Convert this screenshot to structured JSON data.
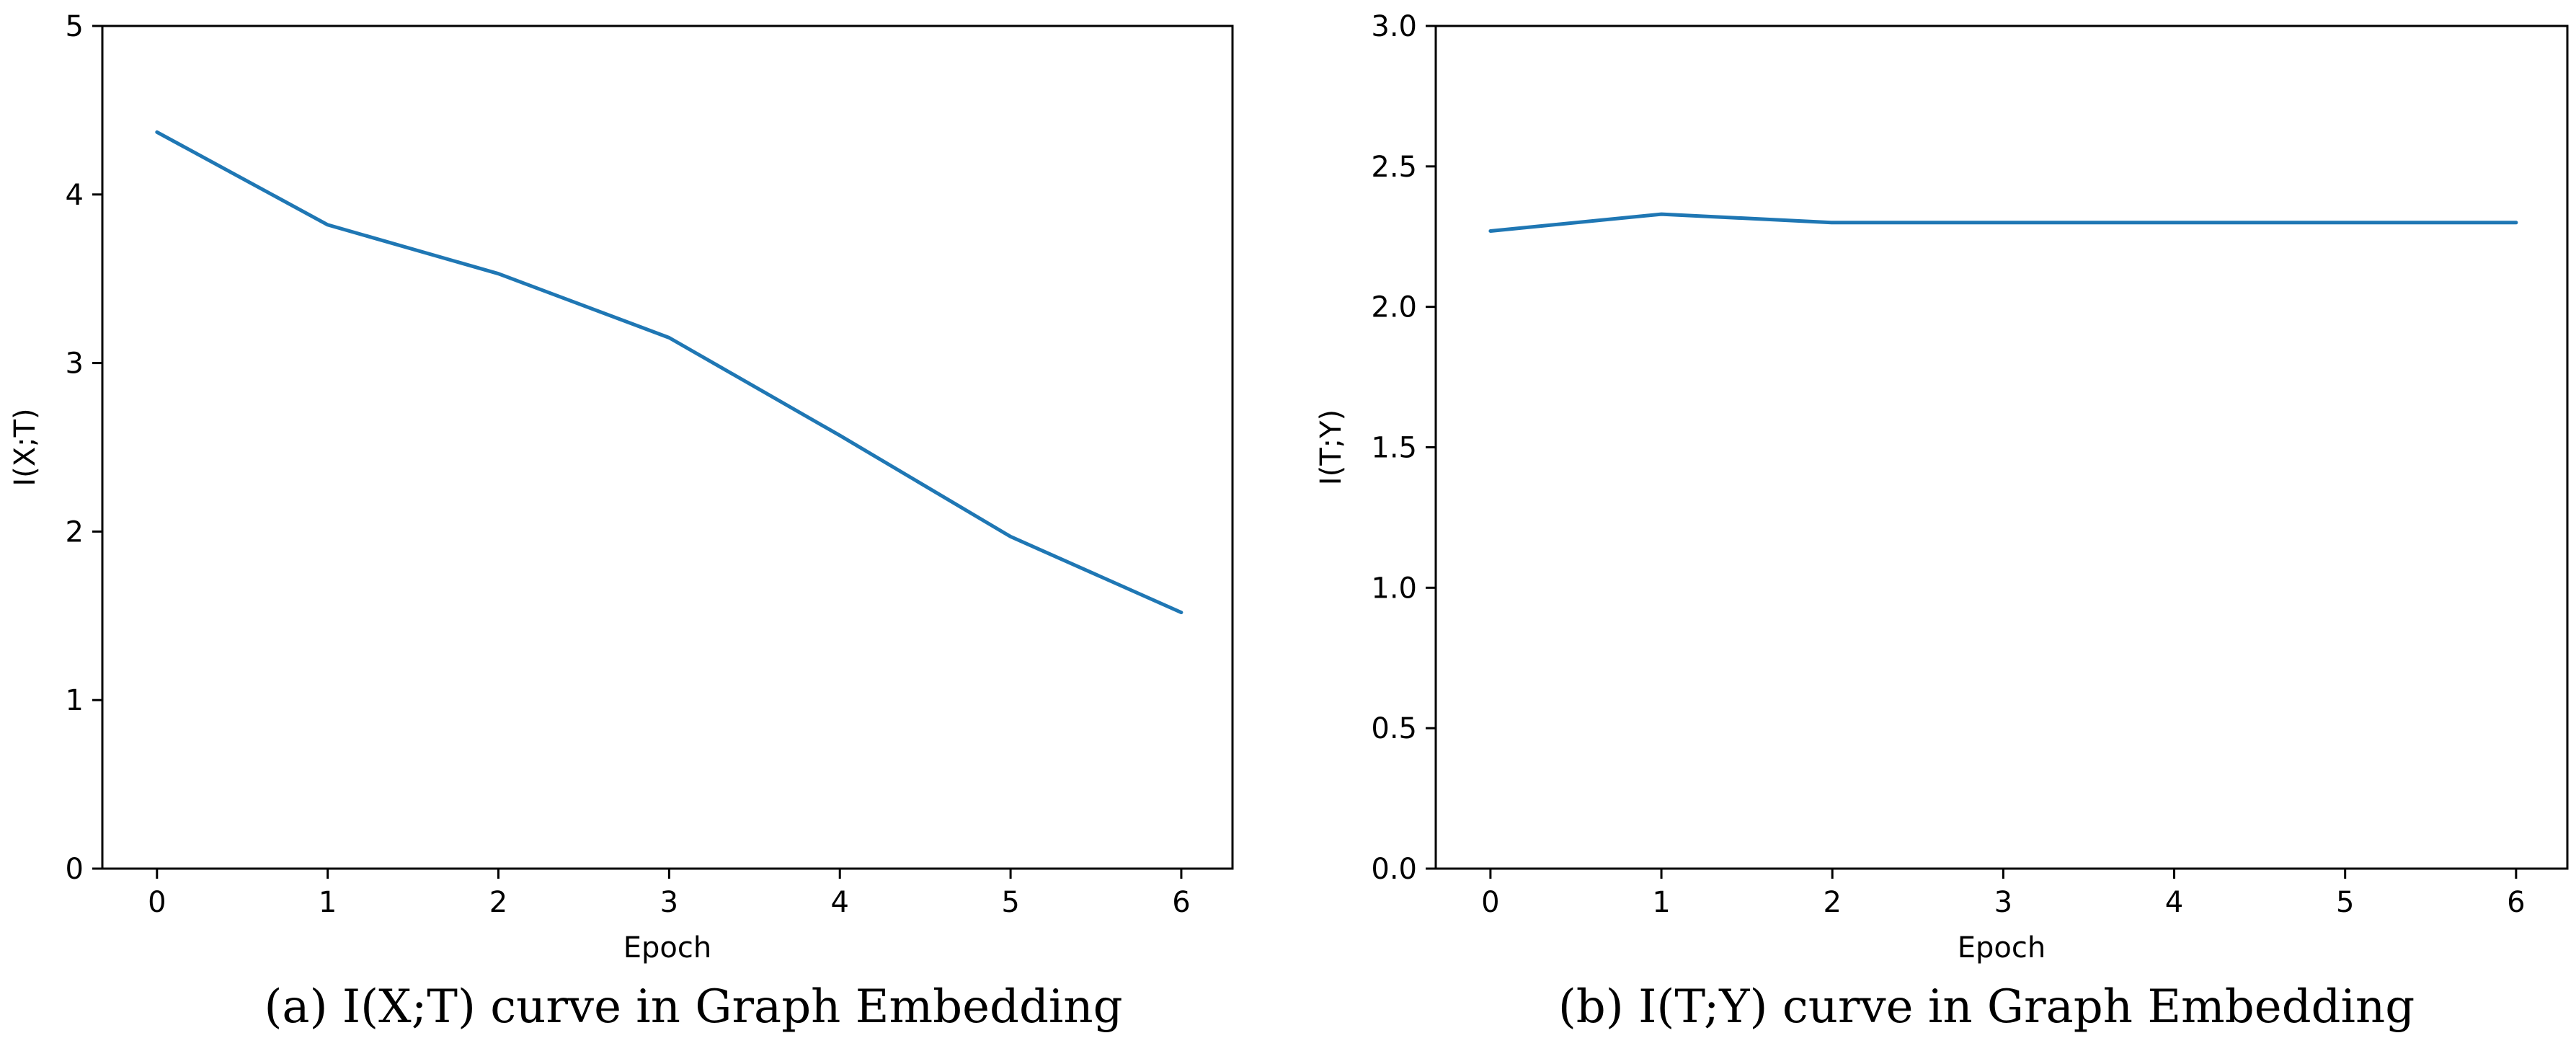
{
  "chart_data": [
    {
      "type": "line",
      "title": "",
      "caption": "(a) I(X;T) curve in Graph Embedding",
      "xlabel": "Epoch",
      "ylabel": "I(X;T)",
      "x": [
        0,
        1,
        2,
        3,
        4,
        5,
        6
      ],
      "series": [
        {
          "name": "I(X;T)",
          "values": [
            4.37,
            3.82,
            3.53,
            3.15,
            2.57,
            1.97,
            1.52
          ]
        }
      ],
      "xlim": [
        -0.32,
        6.3
      ],
      "ylim": [
        0,
        5
      ],
      "xticks": [
        0,
        1,
        2,
        3,
        4,
        5,
        6
      ],
      "yticks": [
        0,
        1,
        2,
        3,
        4,
        5
      ],
      "xtick_labels": [
        "0",
        "1",
        "2",
        "3",
        "4",
        "5",
        "6"
      ],
      "ytick_labels": [
        "0",
        "1",
        "2",
        "3",
        "4",
        "5"
      ],
      "grid": false,
      "line_color": "#1f77b4"
    },
    {
      "type": "line",
      "title": "",
      "caption": "(b) I(T;Y) curve in Graph Embedding",
      "xlabel": "Epoch",
      "ylabel": "I(T;Y)",
      "x": [
        0,
        1,
        2,
        3,
        4,
        5,
        6
      ],
      "series": [
        {
          "name": "I(T;Y)",
          "values": [
            2.27,
            2.33,
            2.3,
            2.3,
            2.3,
            2.3,
            2.3
          ]
        }
      ],
      "xlim": [
        -0.32,
        6.3
      ],
      "ylim": [
        0,
        3
      ],
      "xticks": [
        0,
        1,
        2,
        3,
        4,
        5,
        6
      ],
      "yticks": [
        0,
        0.5,
        1,
        1.5,
        2,
        2.5,
        3
      ],
      "xtick_labels": [
        "0",
        "1",
        "2",
        "3",
        "4",
        "5",
        "6"
      ],
      "ytick_labels": [
        "0.0",
        "0.5",
        "1.0",
        "1.5",
        "2.0",
        "2.5",
        "3.0"
      ],
      "grid": false,
      "line_color": "#1f77b4"
    }
  ]
}
